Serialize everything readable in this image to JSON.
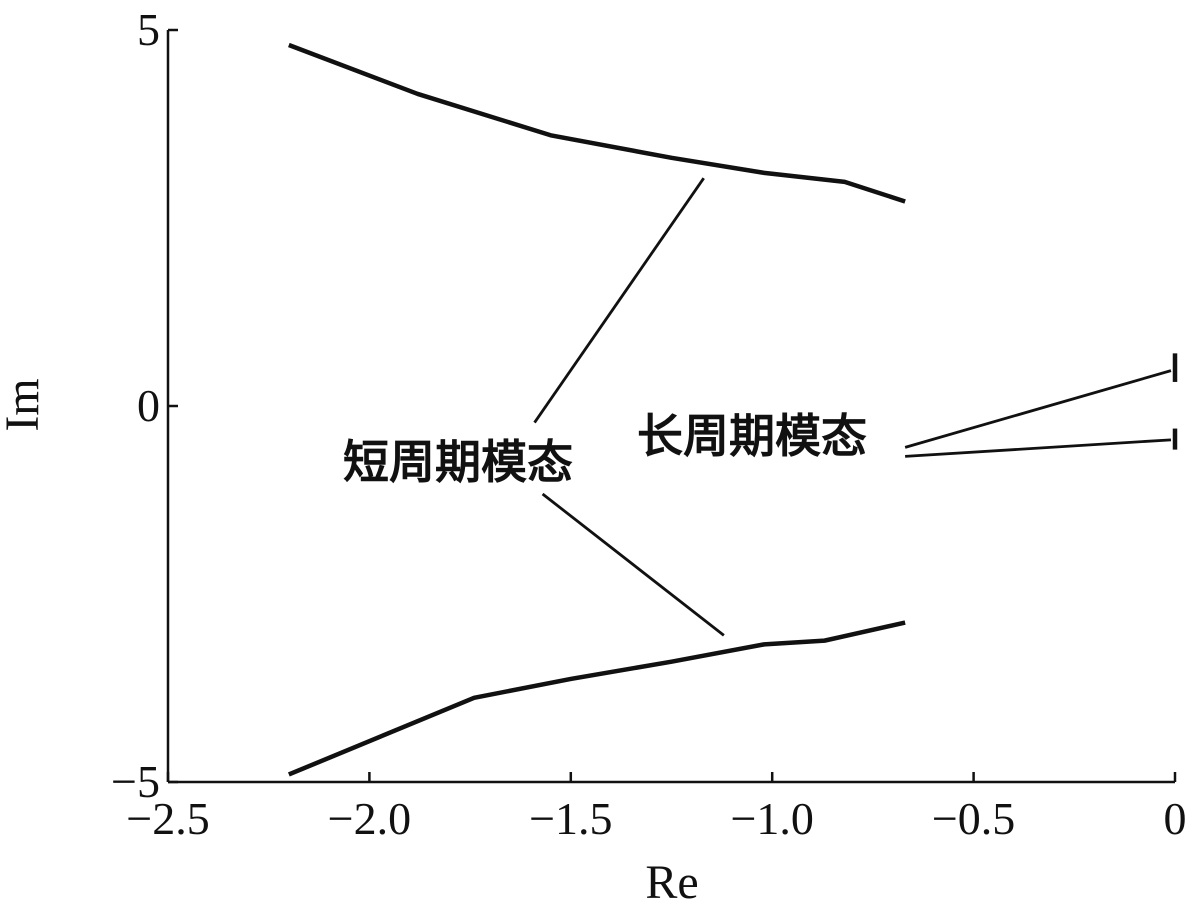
{
  "chart_data": {
    "type": "line",
    "xlabel": "Re",
    "ylabel": "Im",
    "xlim": [
      -2.5,
      0
    ],
    "ylim": [
      -5,
      5
    ],
    "x_ticks": [
      "−2.5",
      "−2.0",
      "−1.5",
      "−1.0",
      "−0.5",
      "0"
    ],
    "y_ticks": [
      "5",
      "0",
      "−5"
    ],
    "grid": false,
    "colors": {
      "line": "#111111",
      "background": "#ffffff"
    },
    "series": [
      {
        "x": [
          -2.2,
          -1.88,
          -1.55,
          -1.25,
          -1.02,
          -0.82,
          -0.67
        ],
        "y": [
          4.8,
          4.15,
          3.6,
          3.3,
          3.1,
          2.98,
          2.72
        ]
      },
      {
        "x": [
          -2.2,
          -1.74,
          -1.5,
          -1.25,
          -1.02,
          -0.87,
          -0.67
        ],
        "y": [
          -4.9,
          -3.88,
          -3.63,
          -3.4,
          -3.17,
          -3.12,
          -2.88
        ]
      },
      {
        "x": [
          0,
          0
        ],
        "y": [
          0.7,
          0.32
        ]
      },
      {
        "x": [
          0,
          0
        ],
        "y": [
          -0.3,
          -0.58
        ]
      }
    ],
    "annotations": [
      {
        "text": "短周期模态",
        "leaders": [
          {
            "from": [
              -1.59,
              -0.22
            ],
            "to": [
              -1.17,
              3.03
            ]
          },
          {
            "from": [
              -1.57,
              -1.17
            ],
            "to": [
              -1.12,
              -3.05
            ]
          }
        ]
      },
      {
        "text": "长周期模态",
        "leaders": [
          {
            "from": [
              -0.67,
              -0.55
            ],
            "to": [
              -0.01,
              0.47
            ]
          },
          {
            "from": [
              -0.67,
              -0.67
            ],
            "to": [
              -0.01,
              -0.45
            ]
          }
        ]
      }
    ]
  }
}
